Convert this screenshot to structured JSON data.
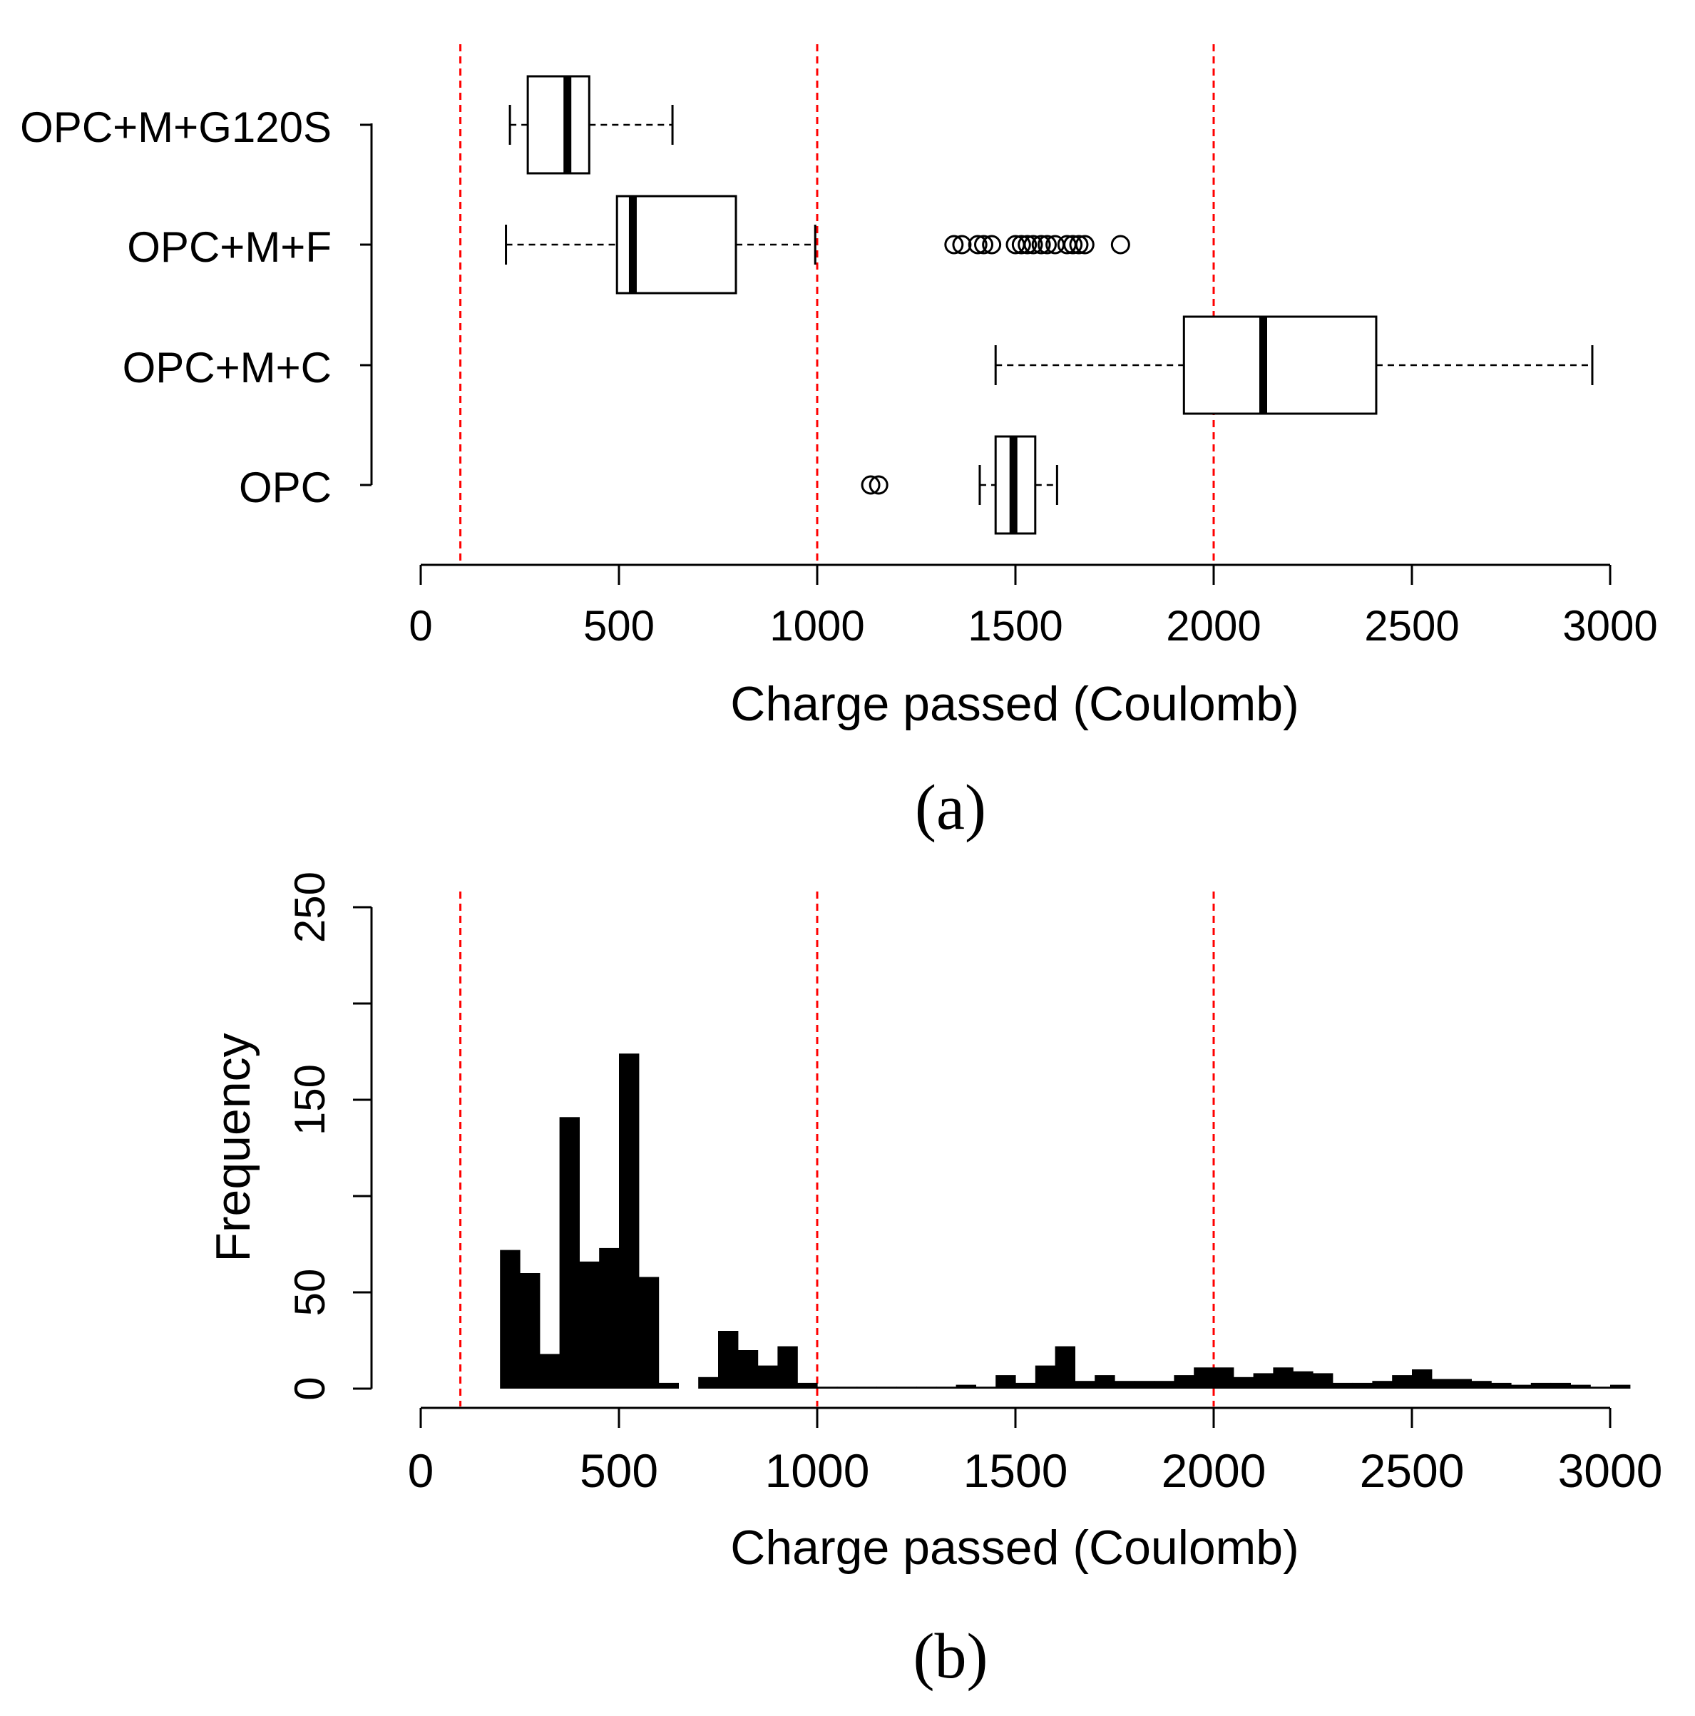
{
  "chart_data": [
    {
      "type": "box",
      "panel_label": "(a)",
      "xlabel": "Charge passed (Coulomb)",
      "xlim": [
        0,
        3000
      ],
      "xticks": [
        0,
        500,
        1000,
        1500,
        2000,
        2500,
        3000
      ],
      "xtick_labels": [
        "0",
        "500",
        "1000",
        "1500",
        "2000",
        "2500",
        "3000"
      ],
      "reference_lines": [
        100,
        1000,
        2000
      ],
      "reference_color": "#ff0000",
      "groups": [
        {
          "name": "OPC+M+G120S",
          "whisker_low": 225,
          "q1": 270,
          "median": 370,
          "q3": 425,
          "whisker_high": 635,
          "outliers": []
        },
        {
          "name": "OPC+M+F",
          "whisker_low": 215,
          "q1": 495,
          "median": 535,
          "q3": 795,
          "whisker_high": 995,
          "outliers": [
            1345,
            1365,
            1405,
            1420,
            1440,
            1500,
            1515,
            1530,
            1545,
            1565,
            1580,
            1600,
            1630,
            1645,
            1660,
            1675,
            1765
          ]
        },
        {
          "name": "OPC+M+C",
          "whisker_low": 1450,
          "q1": 1925,
          "median": 2125,
          "q3": 2410,
          "whisker_high": 2955,
          "outliers": []
        },
        {
          "name": "OPC",
          "whisker_low": 1410,
          "q1": 1450,
          "median": 1495,
          "q3": 1550,
          "whisker_high": 1605,
          "outliers": [
            1135,
            1155
          ]
        }
      ]
    },
    {
      "type": "histogram",
      "panel_label": "(b)",
      "xlabel": "Charge passed (Coulomb)",
      "ylabel": "Frequency",
      "xlim": [
        0,
        3000
      ],
      "ylim": [
        0,
        250
      ],
      "xticks": [
        0,
        500,
        1000,
        1500,
        2000,
        2500,
        3000
      ],
      "xtick_labels": [
        "0",
        "500",
        "1000",
        "1500",
        "2000",
        "2500",
        "3000"
      ],
      "yticks": [
        0,
        50,
        100,
        150,
        200,
        250
      ],
      "ytick_labels": [
        "0",
        "50",
        "",
        "150",
        "",
        "250"
      ],
      "reference_lines": [
        100,
        1000,
        2000
      ],
      "reference_color": "#ff0000",
      "bin_width": 50,
      "bin_start": 200,
      "counts": [
        72,
        60,
        18,
        141,
        66,
        73,
        174,
        58,
        3,
        0,
        6,
        30,
        20,
        12,
        22,
        3,
        1,
        1,
        1,
        1,
        1,
        1,
        1,
        2,
        1,
        7,
        3,
        12,
        22,
        4,
        7,
        4,
        4,
        4,
        7,
        11,
        11,
        6,
        8,
        11,
        9,
        8,
        3,
        3,
        4,
        7,
        10,
        5,
        5,
        4,
        3,
        2,
        3,
        3,
        2,
        1,
        2
      ]
    }
  ]
}
